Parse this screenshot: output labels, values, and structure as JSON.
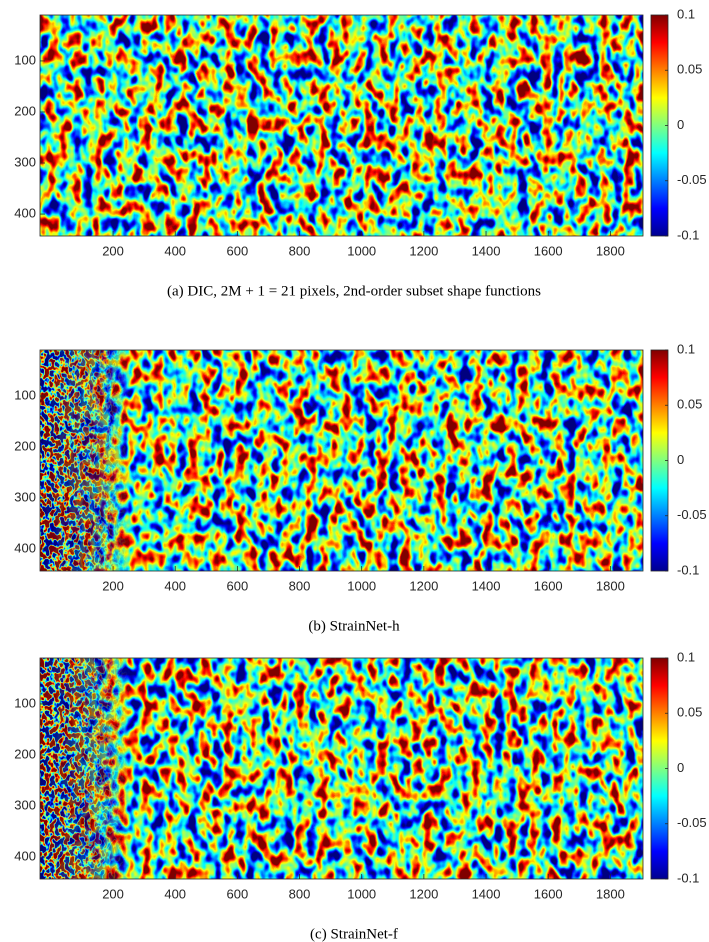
{
  "chart_data": [
    {
      "type": "heatmap",
      "caption": "(a) DIC, 2M + 1 = 21 pixels, 2nd-order subset shape functions",
      "xlim": [
        -35,
        1905
      ],
      "xticks": [
        200,
        400,
        600,
        800,
        1000,
        1200,
        1400,
        1600,
        1800
      ],
      "ylim": [
        10,
        443
      ],
      "yticks": [
        100,
        200,
        300,
        400
      ],
      "y_inverted": true,
      "colormap": "jet",
      "clim": [
        -0.1,
        0.1
      ],
      "cticks": [
        -0.1,
        -0.05,
        0,
        0.05,
        0.1
      ]
    },
    {
      "type": "heatmap",
      "caption": "(b) StrainNet-h",
      "xlim": [
        -35,
        1905
      ],
      "xticks": [
        200,
        400,
        600,
        800,
        1000,
        1200,
        1400,
        1600,
        1800
      ],
      "ylim": [
        10,
        443
      ],
      "yticks": [
        100,
        200,
        300,
        400
      ],
      "y_inverted": true,
      "colormap": "jet",
      "clim": [
        -0.1,
        0.1
      ],
      "cticks": [
        -0.1,
        -0.05,
        0,
        0.05,
        0.1
      ]
    },
    {
      "type": "heatmap",
      "caption": "(c) StrainNet-f",
      "xlim": [
        -35,
        1905
      ],
      "xticks": [
        200,
        400,
        600,
        800,
        1000,
        1200,
        1400,
        1600,
        1800
      ],
      "ylim": [
        10,
        443
      ],
      "yticks": [
        100,
        200,
        300,
        400
      ],
      "y_inverted": true,
      "colormap": "jet",
      "clim": [
        -0.1,
        0.1
      ],
      "cticks": [
        -0.1,
        -0.05,
        0,
        0.05,
        0.1
      ]
    }
  ]
}
